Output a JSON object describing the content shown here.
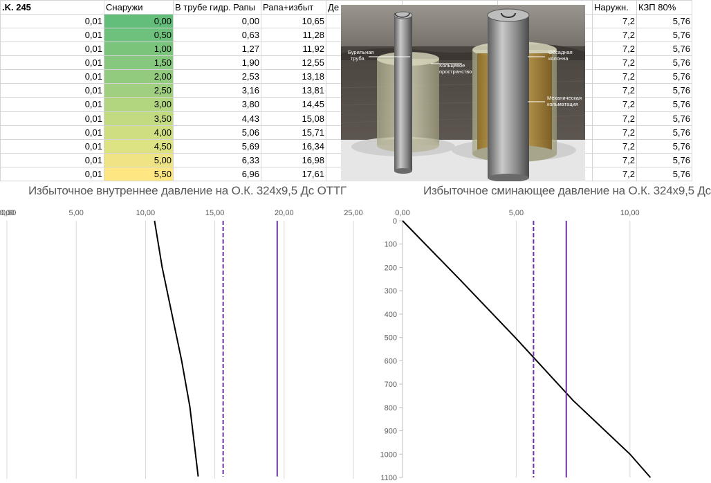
{
  "sheet": {
    "headers": [
      ".K. 245",
      "",
      "Снаружи",
      "В трубе гидр. Рапы",
      "Рапа+избыт",
      "Де",
      "",
      "",
      "Наружн.",
      "КЗП 80%"
    ],
    "rows": [
      {
        "a": "0,01",
        "outside": "0,00",
        "in_pipe": "0,00",
        "brine_excess": "10,65",
        "outer": "7,2",
        "kzp": "5,76"
      },
      {
        "a": "0,01",
        "outside": "0,50",
        "in_pipe": "0,63",
        "brine_excess": "11,28",
        "outer": "7,2",
        "kzp": "5,76"
      },
      {
        "a": "0,01",
        "outside": "1,00",
        "in_pipe": "1,27",
        "brine_excess": "11,92",
        "outer": "7,2",
        "kzp": "5,76"
      },
      {
        "a": "0,01",
        "outside": "1,50",
        "in_pipe": "1,90",
        "brine_excess": "12,55",
        "outer": "7,2",
        "kzp": "5,76"
      },
      {
        "a": "0,01",
        "outside": "2,00",
        "in_pipe": "2,53",
        "brine_excess": "13,18",
        "outer": "7,2",
        "kzp": "5,76"
      },
      {
        "a": "0,01",
        "outside": "2,50",
        "in_pipe": "3,16",
        "brine_excess": "13,81",
        "outer": "7,2",
        "kzp": "5,76"
      },
      {
        "a": "0,01",
        "outside": "3,00",
        "in_pipe": "3,80",
        "brine_excess": "14,45",
        "outer": "7,2",
        "kzp": "5,76"
      },
      {
        "a": "0,01",
        "outside": "3,50",
        "in_pipe": "4,43",
        "brine_excess": "15,08",
        "outer": "7,2",
        "kzp": "5,76"
      },
      {
        "a": "0,01",
        "outside": "4,00",
        "in_pipe": "5,06",
        "brine_excess": "15,71",
        "outer": "7,2",
        "kzp": "5,76"
      },
      {
        "a": "0,01",
        "outside": "4,50",
        "in_pipe": "5,69",
        "brine_excess": "16,34",
        "outer": "7,2",
        "kzp": "5,76"
      },
      {
        "a": "0,01",
        "outside": "5,00",
        "in_pipe": "6,33",
        "brine_excess": "16,98",
        "outer": "7,2",
        "kzp": "5,76"
      },
      {
        "a": "0,01",
        "outside": "5,50",
        "in_pipe": "6,96",
        "brine_excess": "17,61",
        "outer": "7,2",
        "kzp": "5,76"
      }
    ],
    "outside_colors": [
      "#63be7b",
      "#6ec17c",
      "#7ac47c",
      "#86c87d",
      "#92cb7e",
      "#9fcf7f",
      "#b2d580",
      "#c2da80",
      "#d0de82",
      "#dde283",
      "#eee483",
      "#fee683"
    ]
  },
  "figure": {
    "labels": {
      "drill_pipe": [
        "Бурильная",
        "труба"
      ],
      "annulus": [
        "Кольцевое",
        "пространство"
      ],
      "casing": [
        "Обсадная",
        "колонна"
      ],
      "mech": [
        "Механическая",
        "кольматация"
      ]
    },
    "colors": {
      "rock": "#5a5550",
      "pipe": "#8c8c8c",
      "casing": "#c79a3a",
      "annulus": "#c8c6a6"
    }
  },
  "chart_data": [
    {
      "type": "line",
      "title": "Избыточное внутреннее давление на О.К. 324х9,5 Дс ОТТГ",
      "xlim": [
        0,
        25
      ],
      "x_ticks": [
        "0,00",
        "5,00",
        "10,00",
        "15,00",
        "20,00",
        "25,00"
      ],
      "y_tick_labels": [
        "0,00"
      ],
      "ylim": [
        0,
        1110
      ],
      "grid": "vertical",
      "series": [
        {
          "style": "solid",
          "color": "#000000",
          "x": [
            10.65,
            11.2,
            11.9,
            12.6,
            13.2,
            13.8
          ],
          "y": [
            0,
            200,
            400,
            600,
            800,
            1100
          ]
        },
        {
          "style": "dashed",
          "color": "#7030a0",
          "x": [
            15.6,
            15.6
          ],
          "y": [
            0,
            1100
          ]
        },
        {
          "style": "solid",
          "color": "#7030a0",
          "x": [
            19.5,
            19.5
          ],
          "y": [
            0,
            1100
          ]
        }
      ]
    },
    {
      "type": "line",
      "title": "Избыточное сминающее давление на О.К. 324х9,5 Дс",
      "xlim": [
        0,
        12.5
      ],
      "x_ticks": [
        "0,00",
        "5,00",
        "10,00"
      ],
      "ylim": [
        0,
        1100
      ],
      "y_ticks": [
        "0",
        "100",
        "200",
        "300",
        "400",
        "500",
        "600",
        "700",
        "800",
        "900",
        "1000",
        "1100"
      ],
      "grid": "vertical",
      "series": [
        {
          "style": "solid",
          "color": "#000000",
          "x": [
            0,
            2.5,
            5,
            7.5,
            10,
            10.9
          ],
          "y": [
            0,
            250,
            505,
            770,
            1000,
            1100
          ]
        },
        {
          "style": "dashed",
          "color": "#7030a0",
          "x": [
            5.76,
            5.76
          ],
          "y": [
            0,
            1100
          ]
        },
        {
          "style": "solid",
          "color": "#7030a0",
          "x": [
            7.2,
            7.2
          ],
          "y": [
            0,
            1100
          ]
        }
      ]
    }
  ]
}
